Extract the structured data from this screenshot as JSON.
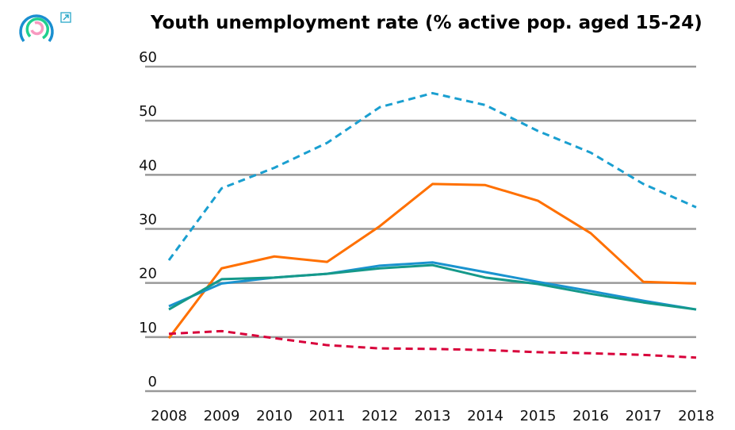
{
  "chart_data": {
    "type": "line",
    "title": "Youth unemployment rate (% active pop. aged 15-24)",
    "xlabel": "",
    "ylabel": "",
    "x": [
      2008,
      2009,
      2010,
      2011,
      2012,
      2013,
      2014,
      2015,
      2016,
      2017,
      2018
    ],
    "x_tick_labels": [
      "2008",
      "2009",
      "2010",
      "2011",
      "2012",
      "2013",
      "2014",
      "2015",
      "2016",
      "2017",
      "2018"
    ],
    "ylim": [
      0,
      60
    ],
    "y_ticks": [
      0,
      10,
      20,
      30,
      40,
      50,
      60
    ],
    "y_tick_labels": [
      "0",
      "10",
      "20",
      "30",
      "40",
      "50",
      "60"
    ],
    "grid": "horizontal",
    "legend": "none",
    "series": [
      {
        "color": "#1a9fd0",
        "style": "dashed",
        "values": [
          24.2,
          37.5,
          41.3,
          45.9,
          52.5,
          55.1,
          52.9,
          48.1,
          44.1,
          38.3,
          34.0
        ]
      },
      {
        "color": "#ff7000",
        "style": "solid",
        "values": [
          9.8,
          22.7,
          24.9,
          23.9,
          30.5,
          38.3,
          38.1,
          35.2,
          29.2,
          20.2,
          19.9
        ]
      },
      {
        "color": "#1a93cf",
        "style": "solid",
        "values": [
          15.7,
          19.9,
          21.0,
          21.7,
          23.2,
          23.8,
          22.0,
          20.2,
          18.5,
          16.7,
          15.1
        ]
      },
      {
        "color": "#15998a",
        "style": "solid",
        "values": [
          15.1,
          20.7,
          21.0,
          21.7,
          22.7,
          23.3,
          21.0,
          19.8,
          18.0,
          16.4,
          15.1
        ]
      },
      {
        "color": "#d8003a",
        "style": "dashed",
        "values": [
          10.6,
          11.1,
          9.8,
          8.5,
          7.9,
          7.8,
          7.6,
          7.2,
          7.0,
          6.7,
          6.2
        ]
      }
    ]
  },
  "icons": {
    "logo": "circular-rings-logo",
    "expand": "external-link-icon"
  }
}
